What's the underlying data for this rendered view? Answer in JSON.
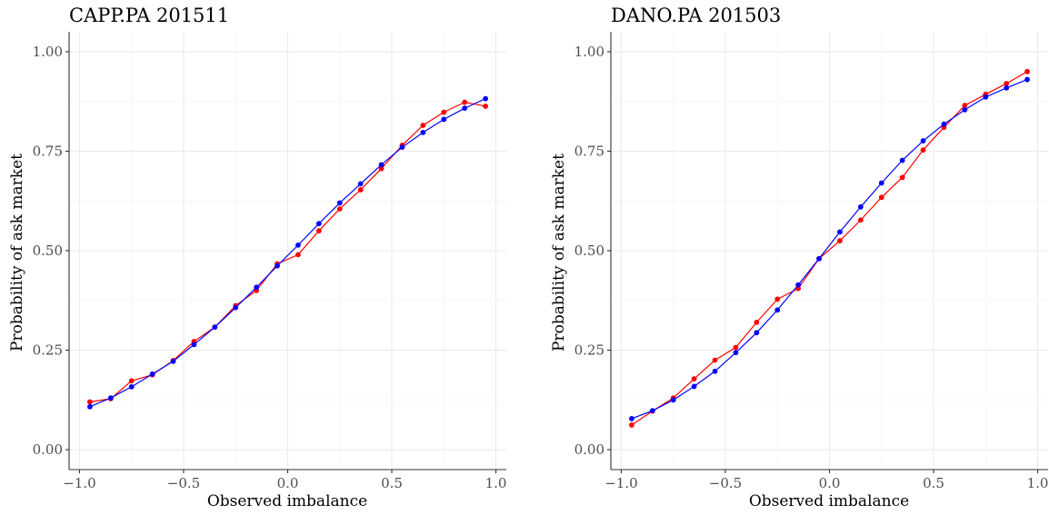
{
  "chart_data": [
    {
      "type": "line",
      "title": "CAPP.PA 201511",
      "xlabel": "Observed imbalance",
      "ylabel": "Probability of ask market",
      "xlim": [
        -1.05,
        1.05
      ],
      "ylim": [
        -0.05,
        1.05
      ],
      "x_ticks": [
        -1.0,
        -0.5,
        0.0,
        0.5,
        1.0
      ],
      "x_tick_labels": [
        "−1.0",
        "−0.5",
        "0.0",
        "0.5",
        "1.0"
      ],
      "y_ticks": [
        0.0,
        0.25,
        0.5,
        0.75,
        1.0
      ],
      "y_tick_labels": [
        "0.00",
        "0.25",
        "0.50",
        "0.75",
        "1.00"
      ],
      "grid": true,
      "x": [
        -0.95,
        -0.85,
        -0.75,
        -0.65,
        -0.55,
        -0.45,
        -0.35,
        -0.25,
        -0.15,
        -0.05,
        0.05,
        0.15,
        0.25,
        0.35,
        0.45,
        0.55,
        0.65,
        0.75,
        0.85,
        0.95
      ],
      "series": [
        {
          "color": "#ff0000",
          "values": [
            0.12,
            0.128,
            0.173,
            0.188,
            0.224,
            0.272,
            0.308,
            0.362,
            0.4,
            0.467,
            0.49,
            0.55,
            0.605,
            0.653,
            0.706,
            0.765,
            0.815,
            0.848,
            0.873,
            0.863
          ]
        },
        {
          "color": "#0000ff",
          "values": [
            0.108,
            0.13,
            0.158,
            0.19,
            0.222,
            0.264,
            0.308,
            0.357,
            0.408,
            0.462,
            0.514,
            0.568,
            0.62,
            0.668,
            0.716,
            0.76,
            0.797,
            0.83,
            0.858,
            0.882
          ]
        }
      ]
    },
    {
      "type": "line",
      "title": "DANO.PA 201503",
      "xlabel": "Observed imbalance",
      "ylabel": "Probability of ask market",
      "xlim": [
        -1.05,
        1.05
      ],
      "ylim": [
        -0.05,
        1.05
      ],
      "x_ticks": [
        -1.0,
        -0.5,
        0.0,
        0.5,
        1.0
      ],
      "x_tick_labels": [
        "−1.0",
        "−0.5",
        "0.0",
        "0.5",
        "1.0"
      ],
      "y_ticks": [
        0.0,
        0.25,
        0.5,
        0.75,
        1.0
      ],
      "y_tick_labels": [
        "0.00",
        "0.25",
        "0.50",
        "0.75",
        "1.00"
      ],
      "grid": true,
      "x": [
        -0.95,
        -0.85,
        -0.75,
        -0.65,
        -0.55,
        -0.45,
        -0.35,
        -0.25,
        -0.15,
        -0.05,
        0.05,
        0.15,
        0.25,
        0.35,
        0.45,
        0.55,
        0.65,
        0.75,
        0.85,
        0.95
      ],
      "series": [
        {
          "color": "#ff0000",
          "values": [
            0.062,
            0.097,
            0.13,
            0.178,
            0.225,
            0.257,
            0.32,
            0.378,
            0.405,
            0.48,
            0.525,
            0.577,
            0.634,
            0.684,
            0.753,
            0.81,
            0.865,
            0.893,
            0.92,
            0.95
          ]
        },
        {
          "color": "#0000ff",
          "values": [
            0.078,
            0.098,
            0.125,
            0.159,
            0.197,
            0.244,
            0.294,
            0.351,
            0.414,
            0.48,
            0.547,
            0.61,
            0.67,
            0.727,
            0.776,
            0.818,
            0.854,
            0.886,
            0.909,
            0.93
          ]
        }
      ]
    }
  ]
}
